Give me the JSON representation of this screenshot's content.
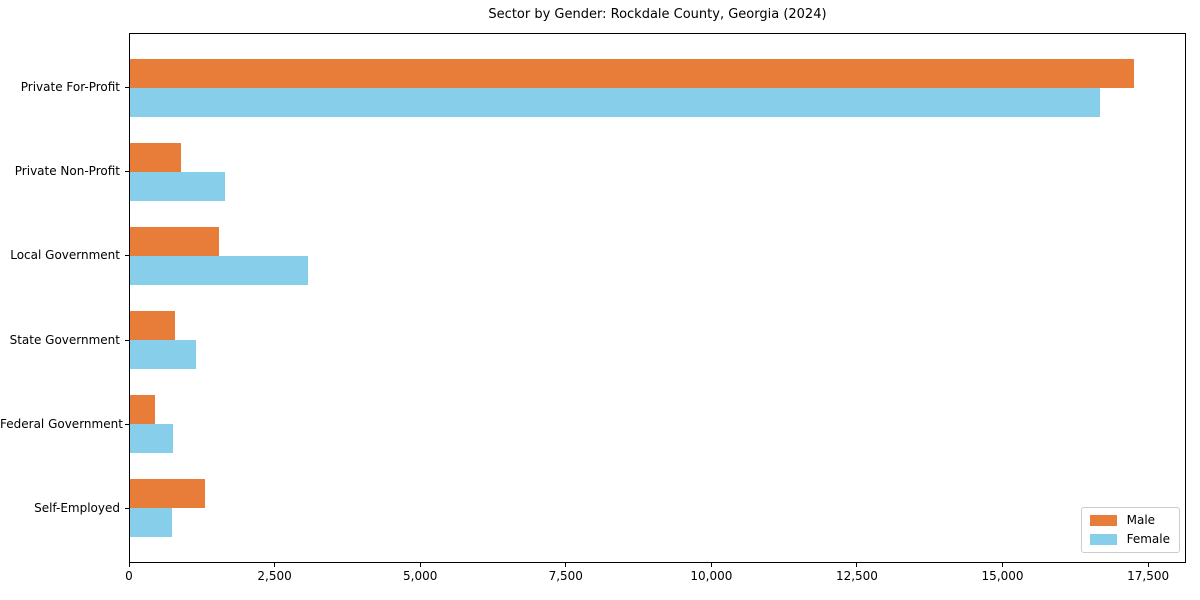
{
  "chart_data": {
    "type": "bar",
    "orientation": "horizontal",
    "title": "Sector by Gender: Rockdale County, Georgia (2024)",
    "categories": [
      "Private For-Profit",
      "Private Non-Profit",
      "Local Government",
      "State Government",
      "Federal Government",
      "Self-Employed"
    ],
    "series": [
      {
        "name": "Male",
        "color": "#e87d3a",
        "values": [
          17270,
          875,
          1530,
          775,
          430,
          1290
        ]
      },
      {
        "name": "Female",
        "color": "#87ceeb",
        "values": [
          16690,
          1630,
          3055,
          1130,
          740,
          720
        ]
      }
    ],
    "xlim": [
      0,
      18150
    ],
    "x_ticks": [
      0,
      2500,
      5000,
      7500,
      10000,
      12500,
      15000,
      17500
    ],
    "x_tick_labels": [
      "0",
      "2,500",
      "5,000",
      "7,500",
      "10,000",
      "12,500",
      "15,000",
      "17,500"
    ],
    "legend_position": "lower right",
    "grid": false,
    "colors": {
      "male": "#e87d3a",
      "female": "#87ceeb",
      "spine": "#000000",
      "legend_border": "#cccccc"
    }
  }
}
